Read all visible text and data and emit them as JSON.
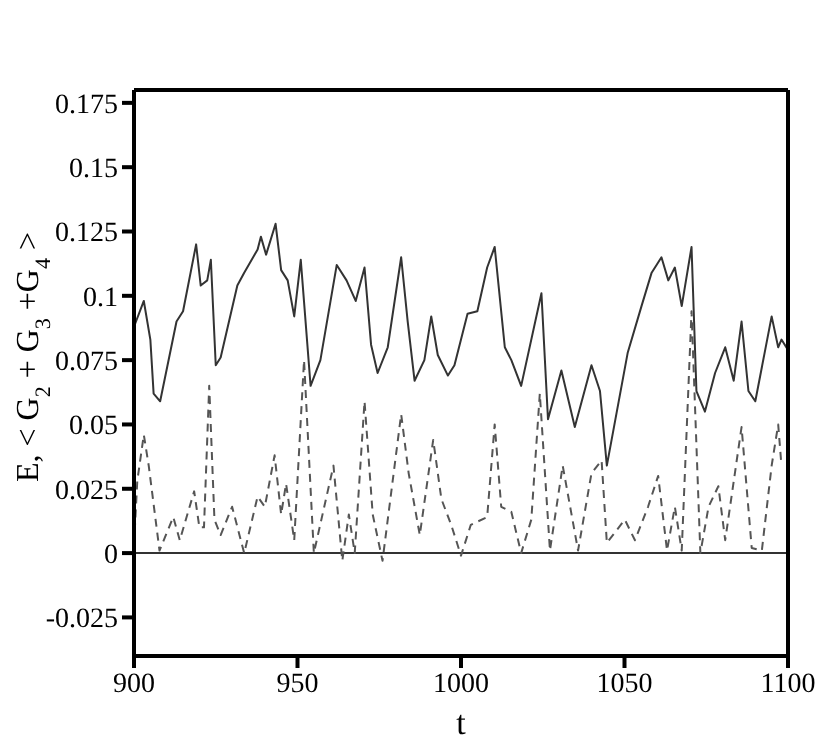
{
  "chart_data": {
    "type": "line",
    "xlabel": "t",
    "ylabel": "E, < G$_{2}$ + G$_{3}$ +G$_{4}$ >",
    "xlim": [
      900,
      1100
    ],
    "xticks": [
      900,
      950,
      1000,
      1050,
      1100
    ],
    "ylim": [
      -0.04,
      0.18
    ],
    "yticks": [
      -0.025,
      0,
      0.025,
      0.05,
      0.075,
      {
        "value": 0.1,
        "label": "0.1"
      },
      0.125,
      0.15,
      0.175
    ],
    "grid": false,
    "legend": false,
    "marker": "none",
    "ref_lines": [
      {
        "axis": "y",
        "value": 0,
        "color": "#333333",
        "line_style": "solid"
      }
    ],
    "series": [
      {
        "color": "#333333",
        "line_style": "solid",
        "x": [
          900,
          903,
          905,
          906,
          908,
          913,
          915,
          919,
          920.4,
          922.4,
          923.5,
          925,
          926.5,
          931.6,
          933.7,
          937.8,
          938.8,
          940.4,
          943.3,
          945,
          947,
          949,
          951,
          954,
          957,
          962,
          965,
          967.8,
          970.5,
          972.5,
          974.5,
          977.6,
          981.7,
          983.7,
          985.8,
          988.8,
          990.9,
          992.9,
          996,
          998,
          1002,
          1005,
          1008,
          1010.3,
          1013.4,
          1015.4,
          1018.4,
          1024.6,
          1026.6,
          1030.7,
          1034.8,
          1039.9,
          1042.5,
          1044.6,
          1051,
          1055.2,
          1058.3,
          1061.3,
          1063.4,
          1065.4,
          1067.5,
          1070.5,
          1072,
          1074.6,
          1077.7,
          1080.8,
          1083.4,
          1085.8,
          1087.9,
          1090,
          1095,
          1097,
          1098,
          1100
        ],
        "values": [
          0.088,
          0.098,
          0.083,
          0.062,
          0.059,
          0.09,
          0.094,
          0.12,
          0.104,
          0.106,
          0.114,
          0.073,
          0.076,
          0.104,
          0.109,
          0.118,
          0.123,
          0.116,
          0.128,
          0.11,
          0.106,
          0.092,
          0.114,
          0.065,
          0.075,
          0.112,
          0.106,
          0.098,
          0.111,
          0.081,
          0.07,
          0.08,
          0.115,
          0.09,
          0.067,
          0.075,
          0.092,
          0.077,
          0.069,
          0.073,
          0.093,
          0.094,
          0.111,
          0.119,
          0.08,
          0.075,
          0.065,
          0.101,
          0.052,
          0.071,
          0.049,
          0.073,
          0.063,
          0.034,
          0.078,
          0.096,
          0.109,
          0.115,
          0.106,
          0.111,
          0.096,
          0.119,
          0.063,
          0.055,
          0.07,
          0.08,
          0.067,
          0.09,
          0.063,
          0.059,
          0.092,
          0.08,
          0.083,
          0.079
        ]
      },
      {
        "color": "#555555",
        "line_style": "dashed",
        "x": [
          900,
          901,
          903,
          904.5,
          907.8,
          912,
          914,
          918.4,
          920,
          921.4,
          923,
          924.6,
          926.5,
          930,
          933.7,
          937.8,
          940,
          943,
          945,
          946.5,
          949,
          952,
          955,
          961,
          963.7,
          965.7,
          967.5,
          970.5,
          973,
          976,
          981.7,
          984,
          987.4,
          991.5,
          994,
          997,
          1000,
          1003,
          1008,
          1010.3,
          1012.3,
          1015.4,
          1018.4,
          1021.5,
          1024.1,
          1027.2,
          1031.1,
          1035.8,
          1039.9,
          1043,
          1044.6,
          1050.1,
          1053.2,
          1057.2,
          1060.3,
          1063,
          1065.4,
          1067.5,
          1070.5,
          1073.2,
          1075.7,
          1078.7,
          1080.8,
          1085.8,
          1088.9,
          1092,
          1095,
          1097,
          1098
        ],
        "values": [
          0.003,
          0.028,
          0.046,
          0.034,
          0.001,
          0.014,
          0.005,
          0.024,
          0.01,
          0.01,
          0.065,
          0.013,
          0.007,
          0.018,
          0,
          0.022,
          0.018,
          0.038,
          0.015,
          0.027,
          0.005,
          0.075,
          0,
          0.034,
          -0.003,
          0.015,
          0,
          0.059,
          0.015,
          -0.003,
          0.054,
          0.031,
          0.007,
          0.044,
          0.021,
          0.011,
          -0.001,
          0.011,
          0.014,
          0.05,
          0.018,
          0.016,
          0,
          0.013,
          0.062,
          0.001,
          0.034,
          0.001,
          0.031,
          0.036,
          0.004,
          0.013,
          0.005,
          0.018,
          0.03,
          0.001,
          0.018,
          0.001,
          0.094,
          0,
          0.018,
          0.026,
          0.005,
          0.049,
          0.002,
          0.001,
          0.034,
          0.05,
          0.034
        ]
      }
    ]
  }
}
